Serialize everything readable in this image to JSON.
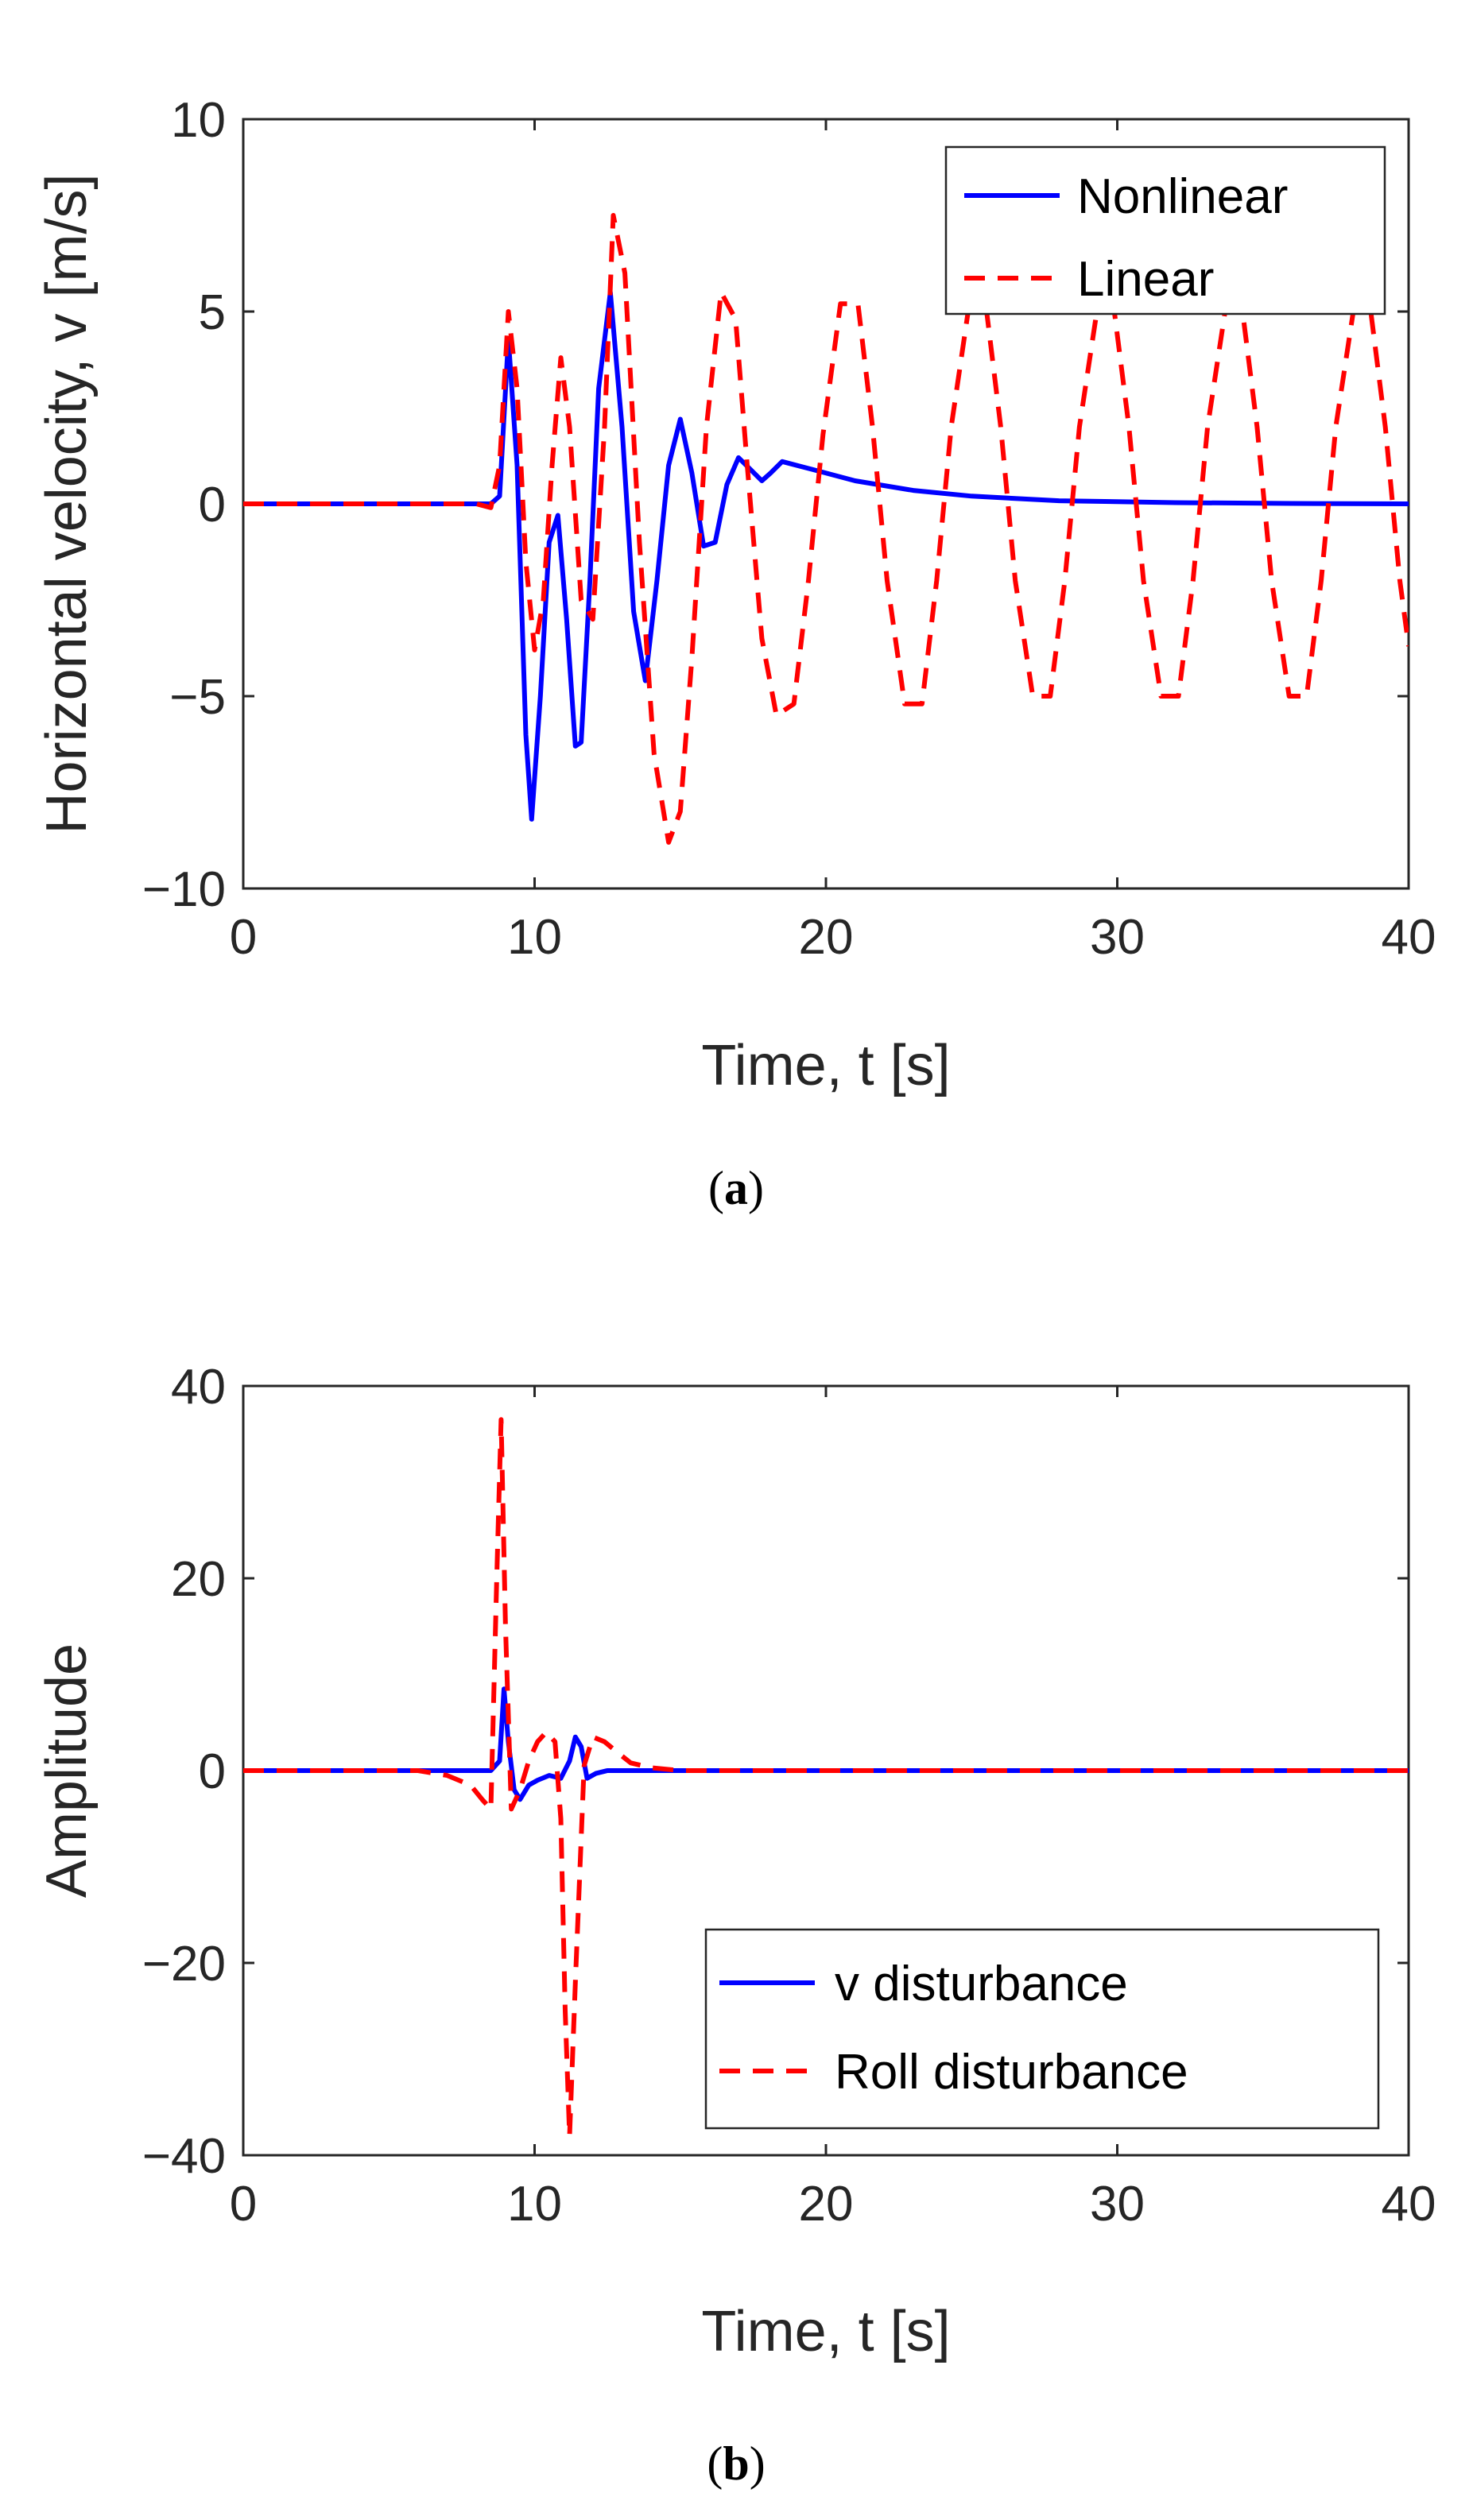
{
  "colors": {
    "nonlinear": "#0000ff",
    "linear": "#ff0000",
    "axis": "#262626"
  },
  "chart_data": [
    {
      "id": "a",
      "type": "line",
      "caption_letter": "a",
      "xlabel": "Time, t [s]",
      "ylabel": "Horizontal velocity, v [m/s]",
      "xlim": [
        0,
        40
      ],
      "ylim": [
        -10,
        10
      ],
      "xticks": [
        0,
        10,
        20,
        30,
        40
      ],
      "yticks": [
        10,
        5,
        0,
        -5,
        -10
      ],
      "ytick_labels": [
        "10",
        "5",
        "0",
        "−5",
        "−10"
      ],
      "legend_position": "top-right",
      "series": [
        {
          "name": "Nonlinear",
          "style": "solid",
          "x": [
            0,
            8.5,
            8.8,
            9.1,
            9.4,
            9.7,
            9.9,
            10.2,
            10.5,
            10.8,
            11.1,
            11.4,
            11.6,
            11.9,
            12.2,
            12.6,
            13.0,
            13.4,
            13.8,
            14.2,
            14.6,
            15.0,
            15.4,
            15.8,
            16.2,
            16.6,
            17.0,
            17.4,
            17.8,
            18.1,
            18.5,
            19.5,
            21,
            23,
            25,
            28,
            32,
            36,
            40
          ],
          "values": [
            0,
            0,
            0.2,
            4.3,
            1.0,
            -6.0,
            -8.2,
            -5.0,
            -1.0,
            -0.3,
            -3.0,
            -6.3,
            -6.2,
            -2.0,
            3.0,
            5.5,
            2.0,
            -2.8,
            -4.6,
            -2.0,
            1.0,
            2.2,
            0.8,
            -1.1,
            -1.0,
            0.5,
            1.2,
            0.9,
            0.6,
            0.8,
            1.1,
            0.9,
            0.6,
            0.35,
            0.2,
            0.08,
            0.03,
            0.01,
            0
          ]
        },
        {
          "name": "Linear",
          "style": "dashed",
          "x": [
            0,
            8.0,
            8.5,
            8.8,
            9.1,
            9.4,
            9.7,
            10.0,
            10.3,
            10.6,
            10.9,
            11.2,
            11.6,
            12.0,
            12.4,
            12.7,
            13.1,
            13.6,
            14.1,
            14.6,
            15.0,
            15.4,
            15.9,
            16.4,
            16.9,
            17.3,
            17.8,
            18.3,
            18.9,
            19.4,
            19.9,
            20.5,
            21.1,
            21.6,
            22.1,
            22.7,
            23.3,
            23.8,
            24.3,
            24.9,
            25.5,
            26.0,
            26.5,
            27.1,
            27.7,
            28.2,
            28.7,
            29.3,
            29.9,
            30.4,
            30.9,
            31.5,
            32.1,
            32.6,
            33.1,
            33.7,
            34.3,
            34.8,
            35.3,
            35.9,
            36.5,
            37.0,
            37.5,
            38.1,
            38.7,
            39.2,
            39.7,
            40.0
          ],
          "values": [
            0,
            0,
            -0.1,
            1.0,
            5.0,
            3.0,
            -1.5,
            -3.8,
            -2.5,
            1.0,
            3.8,
            2.0,
            -2.5,
            -3.0,
            2.0,
            7.5,
            6.0,
            -1.0,
            -6.5,
            -8.8,
            -8.0,
            -4.0,
            2.0,
            5.5,
            4.8,
            1.0,
            -3.5,
            -5.5,
            -5.2,
            -2.0,
            1.8,
            5.2,
            5.2,
            2.0,
            -2.0,
            -5.2,
            -5.2,
            -2.0,
            2.0,
            5.1,
            5.1,
            2.0,
            -2.0,
            -5.0,
            -5.0,
            -2.0,
            2.0,
            5.0,
            5.0,
            2.0,
            -2.0,
            -5.0,
            -5.0,
            -2.0,
            2.0,
            5.0,
            5.0,
            2.0,
            -2.0,
            -5.0,
            -5.0,
            -2.0,
            2.0,
            5.0,
            5.0,
            2.0,
            -2.0,
            -3.7
          ]
        }
      ]
    },
    {
      "id": "b",
      "type": "line",
      "caption_letter": "b",
      "xlabel": "Time, t [s]",
      "ylabel": "Amplitude",
      "xlim": [
        0,
        40
      ],
      "ylim": [
        -40,
        40
      ],
      "xticks": [
        0,
        10,
        20,
        30,
        40
      ],
      "yticks": [
        40,
        20,
        0,
        -20,
        -40
      ],
      "ytick_labels": [
        "40",
        "20",
        "0",
        "−20",
        "−40"
      ],
      "legend_position": "bottom-right",
      "series": [
        {
          "name": "v disturbance",
          "style": "solid",
          "x": [
            0,
            8.5,
            8.8,
            8.95,
            9.1,
            9.3,
            9.5,
            9.8,
            10.1,
            10.5,
            10.9,
            11.2,
            11.4,
            11.6,
            11.8,
            12.1,
            12.5,
            13.0,
            14,
            20,
            30,
            40
          ],
          "values": [
            0,
            0,
            1.0,
            8.5,
            3.0,
            -2.0,
            -3.0,
            -1.5,
            -1.0,
            -0.5,
            -0.8,
            1.0,
            3.5,
            2.5,
            -0.8,
            -0.3,
            0,
            0,
            0,
            0,
            0,
            0
          ]
        },
        {
          "name": "Roll disturbance",
          "style": "dashed",
          "x": [
            0,
            6.0,
            7.0,
            7.8,
            8.2,
            8.5,
            8.7,
            8.85,
            9.0,
            9.2,
            9.5,
            9.8,
            10.1,
            10.4,
            10.7,
            10.9,
            11.05,
            11.2,
            11.4,
            11.7,
            12.0,
            12.4,
            12.8,
            13.3,
            14,
            15,
            20,
            30,
            40
          ],
          "values": [
            0,
            0,
            -0.5,
            -1.5,
            -3.0,
            -4.0,
            20.0,
            36.5,
            15.0,
            -4.0,
            -2.0,
            1.0,
            3.0,
            4.0,
            3.0,
            -5.0,
            -25.0,
            -38.0,
            -22.0,
            0.5,
            3.5,
            3.0,
            2.0,
            0.8,
            0.3,
            0,
            0,
            0,
            0
          ]
        }
      ]
    }
  ]
}
